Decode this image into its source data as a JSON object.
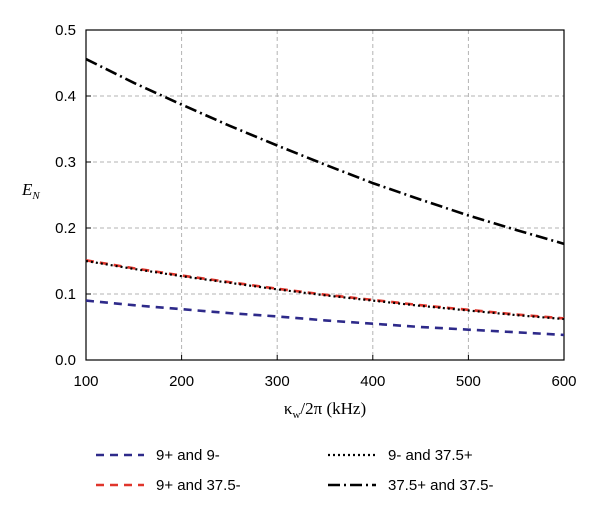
{
  "chart_data": {
    "type": "line",
    "title": "",
    "xlabel": {
      "main": "κ",
      "sub": "w",
      "rest": "/2π (kHz)"
    },
    "ylabel": {
      "main": "E",
      "sub": "N"
    },
    "xlim": [
      100,
      600
    ],
    "ylim": [
      0.0,
      0.5
    ],
    "x_ticks": [
      "100",
      "200",
      "300",
      "400",
      "500",
      "600"
    ],
    "y_ticks": [
      "0.0",
      "0.1",
      "0.2",
      "0.3",
      "0.4",
      "0.5"
    ],
    "grid": true,
    "legend_position": "below",
    "x": [
      100,
      150,
      200,
      250,
      300,
      350,
      400,
      450,
      500,
      550,
      600
    ],
    "series": [
      {
        "name": "9+ and 9-",
        "color": "#2e2a8a",
        "dash": "dashed",
        "values": [
          0.09,
          0.083,
          0.077,
          0.071,
          0.066,
          0.06,
          0.055,
          0.05,
          0.046,
          0.042,
          0.038
        ]
      },
      {
        "name": "9+ and 37.5-",
        "color": "#e0352b",
        "dash": "dashed",
        "values": [
          0.151,
          0.139,
          0.128,
          0.118,
          0.108,
          0.099,
          0.091,
          0.083,
          0.076,
          0.069,
          0.063
        ]
      },
      {
        "name": "9- and 37.5+",
        "color": "#000000",
        "dash": "dotted",
        "values": [
          0.15,
          0.138,
          0.127,
          0.117,
          0.107,
          0.098,
          0.09,
          0.082,
          0.075,
          0.068,
          0.062
        ]
      },
      {
        "name": "37.5+ and 37.5-",
        "color": "#000000",
        "dash": "dashdot",
        "values": [
          0.456,
          0.42,
          0.387,
          0.355,
          0.325,
          0.296,
          0.268,
          0.243,
          0.219,
          0.197,
          0.176
        ]
      }
    ]
  }
}
